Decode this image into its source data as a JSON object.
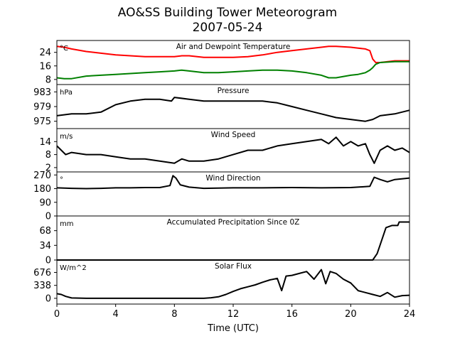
{
  "title": [
    "AO&SS Building Tower Meteorogram",
    "2007-05-24"
  ],
  "xlabel": "Time (UTC)",
  "x_ticks": [
    0,
    4,
    8,
    12,
    16,
    20,
    24
  ],
  "chart_data": [
    {
      "type": "line",
      "title": "Air and Dewpoint Temperature",
      "unit": "°C",
      "yticks": [
        8,
        16,
        24
      ],
      "ylim": [
        5,
        31
      ],
      "series": [
        {
          "color": "#ff0000",
          "x": [
            0,
            0.5,
            1,
            2,
            3,
            4,
            5,
            6,
            7,
            8,
            8.5,
            9,
            10,
            11,
            12,
            13,
            14,
            15,
            16,
            17,
            18,
            18.5,
            19,
            20,
            20.5,
            21,
            21.3,
            21.5,
            21.7,
            22,
            23,
            24
          ],
          "y": [
            27.5,
            27,
            26,
            24.5,
            23.5,
            22.5,
            22,
            21.5,
            21.5,
            21.5,
            22,
            22,
            21,
            21,
            21,
            21.5,
            22.5,
            24,
            25,
            26,
            27,
            27.5,
            27.5,
            27,
            26.5,
            26,
            25,
            20,
            18,
            18,
            19,
            19
          ]
        },
        {
          "color": "#008000",
          "x": [
            0,
            0.5,
            1,
            2,
            3,
            4,
            5,
            6,
            7,
            8,
            8.5,
            9,
            10,
            11,
            12,
            13,
            14,
            15,
            16,
            17,
            18,
            18.5,
            19,
            20,
            20.5,
            21,
            21.3,
            21.5,
            21.7,
            22,
            23,
            24
          ],
          "y": [
            9,
            8.5,
            8.5,
            10,
            10.5,
            11,
            11.5,
            12,
            12.5,
            13,
            13.5,
            13,
            12,
            12,
            12.5,
            13,
            13.5,
            13.5,
            13,
            12,
            10.5,
            9,
            9,
            10.5,
            11,
            12,
            13.5,
            15,
            17,
            18,
            18.5,
            18.5
          ]
        }
      ]
    },
    {
      "type": "line",
      "title": "Pressure",
      "unit": "hPa",
      "yticks": [
        975,
        979,
        983
      ],
      "ylim": [
        973,
        985
      ],
      "series": [
        {
          "color": "#000000",
          "x": [
            0,
            1,
            2,
            3,
            4,
            5,
            6,
            7,
            7.8,
            8,
            9,
            10,
            11,
            12,
            13,
            14,
            15,
            16,
            17,
            18,
            19,
            20,
            21,
            21.5,
            22,
            23,
            24
          ],
          "y": [
            976.5,
            977,
            977,
            977.5,
            979.5,
            980.5,
            981,
            981,
            980.5,
            981.5,
            981,
            980.5,
            980.5,
            980.5,
            980.5,
            980.5,
            980,
            979,
            978,
            977,
            976,
            975.5,
            975,
            975.5,
            976.5,
            977,
            978
          ]
        }
      ]
    },
    {
      "type": "line",
      "title": "Wind Speed",
      "unit": "m/s",
      "yticks": [
        2,
        8,
        14
      ],
      "ylim": [
        0,
        20
      ],
      "series": [
        {
          "color": "#000000",
          "x": [
            0,
            0.3,
            0.6,
            1,
            2,
            3,
            4,
            5,
            6,
            7,
            8,
            8.5,
            9,
            10,
            11,
            12,
            13,
            14,
            15,
            16,
            17,
            18,
            18.5,
            19,
            19.5,
            20,
            20.5,
            21,
            21.3,
            21.6,
            22,
            22.5,
            23,
            23.5,
            24
          ],
          "y": [
            12,
            10,
            8,
            9,
            8,
            8,
            7,
            6,
            6,
            5,
            4,
            6,
            5,
            5,
            6,
            8,
            10,
            10,
            12,
            13,
            14,
            15,
            13,
            16,
            12,
            14,
            12,
            13,
            8,
            4,
            10,
            12,
            10,
            11,
            9
          ]
        }
      ]
    },
    {
      "type": "line",
      "title": "Wind Direction",
      "unit": "°",
      "yticks": [
        0,
        90,
        180,
        270
      ],
      "ylim": [
        0,
        290
      ],
      "series": [
        {
          "color": "#000000",
          "x": [
            0,
            1,
            2,
            3,
            4,
            5,
            6,
            7,
            7.7,
            7.9,
            8.1,
            8.4,
            9,
            10,
            12,
            14,
            16,
            18,
            20,
            21.3,
            21.6,
            22,
            22.5,
            23,
            24
          ],
          "y": [
            185,
            182,
            180,
            182,
            185,
            185,
            187,
            187,
            200,
            265,
            250,
            205,
            190,
            182,
            185,
            185,
            187,
            185,
            187,
            195,
            255,
            240,
            225,
            240,
            250
          ]
        }
      ]
    },
    {
      "type": "line",
      "title": "Accumulated Precipitation Since 0Z",
      "unit": "mm",
      "yticks": [
        0,
        34,
        68
      ],
      "ylim": [
        0,
        102
      ],
      "series": [
        {
          "color": "#000000",
          "x": [
            0,
            21.5,
            21.8,
            22,
            22.2,
            22.4,
            22.8,
            23,
            23.2,
            23.3,
            23.6,
            24
          ],
          "y": [
            0,
            0,
            15,
            35,
            55,
            75,
            80,
            80,
            80,
            88,
            88,
            88
          ]
        }
      ]
    },
    {
      "type": "line",
      "title": "Solar Flux",
      "unit": "W/m^2",
      "yticks": [
        0,
        338,
        676
      ],
      "ylim": [
        -150,
        1000
      ],
      "series": [
        {
          "color": "#000000",
          "x": [
            0,
            0.3,
            0.6,
            1,
            2,
            4,
            6,
            8,
            10,
            10.5,
            11,
            11.5,
            12,
            12.5,
            13,
            13.5,
            14,
            14.5,
            15,
            15.3,
            15.6,
            16,
            16.5,
            17,
            17.5,
            18,
            18.3,
            18.6,
            19,
            19.5,
            20,
            20.5,
            21,
            21.5,
            22,
            22.5,
            23,
            23.5,
            24
          ],
          "y": [
            120,
            100,
            50,
            10,
            0,
            0,
            0,
            0,
            0,
            15,
            40,
            100,
            180,
            250,
            300,
            350,
            420,
            480,
            520,
            200,
            580,
            600,
            650,
            700,
            500,
            750,
            380,
            700,
            650,
            500,
            400,
            200,
            150,
            100,
            50,
            150,
            30,
            70,
            80
          ]
        }
      ]
    }
  ]
}
